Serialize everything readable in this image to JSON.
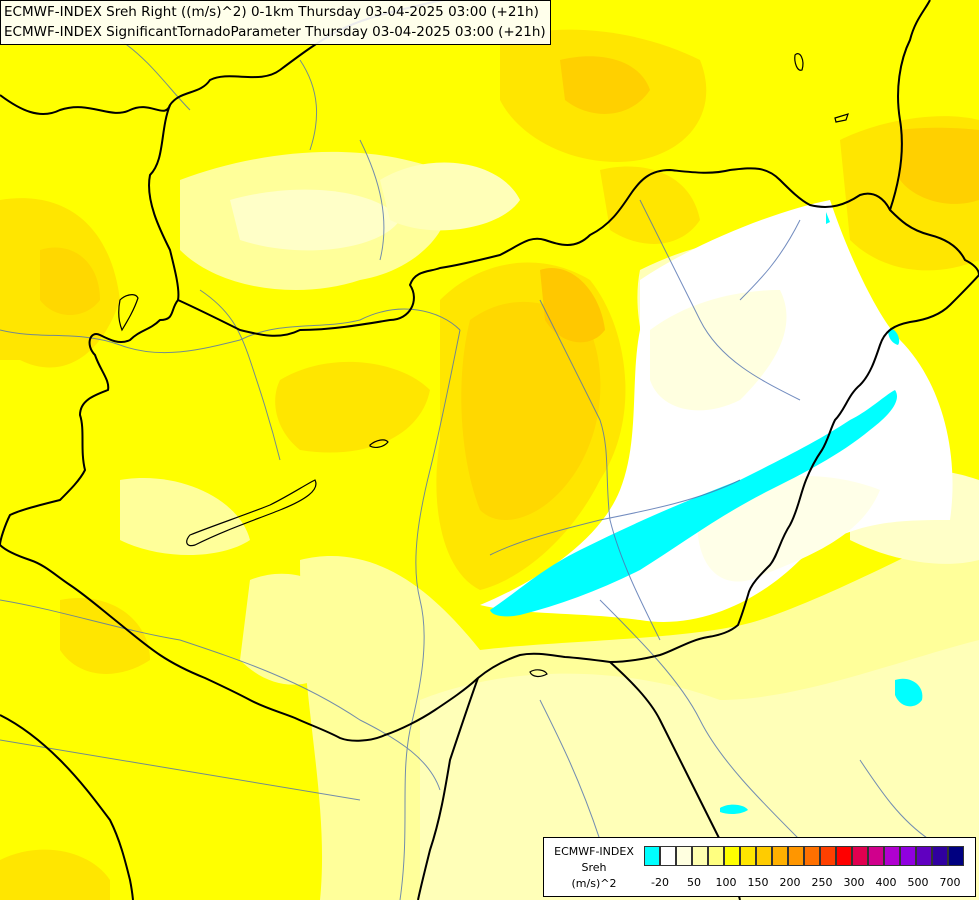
{
  "header": {
    "line1": "ECMWF-INDEX Sreh Right ((m/s)^2) 0-1km Thursday 03-04-2025 03:00 (+21h)",
    "line2": "ECMWF-INDEX SignificantTornadoParameter Thursday 03-04-2025 03:00 (+21h)"
  },
  "legend": {
    "title1": "ECMWF-INDEX",
    "title2": "Sreh",
    "unit": "(m/s)^2",
    "swatch_colors": [
      "#00ffff",
      "#ffffff",
      "#ffffe0",
      "#ffffb0",
      "#ffff80",
      "#ffff00",
      "#ffe600",
      "#ffcc00",
      "#ffb000",
      "#ff9600",
      "#ff7000",
      "#ff4000",
      "#ff0000",
      "#e00050",
      "#d0008c",
      "#b000d0",
      "#9000e0",
      "#6000c0",
      "#3000a0",
      "#000080"
    ],
    "ticks": [
      "-20",
      "50",
      "100",
      "150",
      "200",
      "250",
      "300",
      "400",
      "500",
      "700"
    ]
  }
}
